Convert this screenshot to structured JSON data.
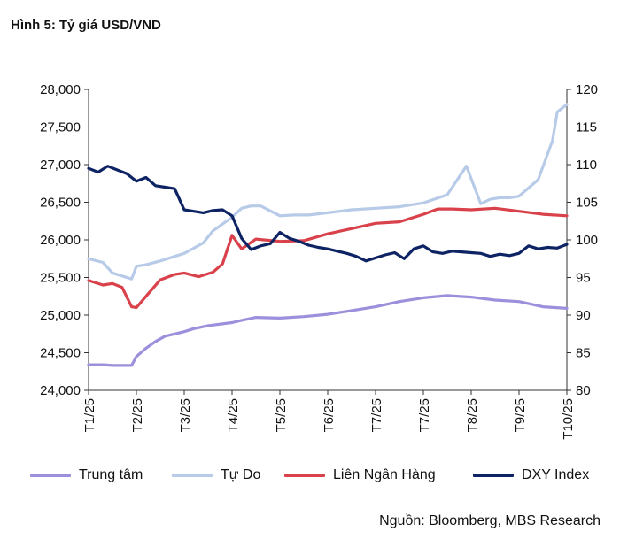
{
  "title": {
    "label": "Hình 5:",
    "text": "Tỷ giá USD/VND"
  },
  "source": "Nguồn: Bloomberg, MBS Research",
  "chart_data": {
    "type": "line",
    "categories": [
      "T1/25",
      "T2/25",
      "T3/25",
      "T4/25",
      "T5/25",
      "T6/25",
      "T7/25",
      "T7/25",
      "T8/25",
      "T9/25",
      "T10/25"
    ],
    "y_left": {
      "min": 24000,
      "max": 28000,
      "ticks": [
        "24,000",
        "24,500",
        "25,000",
        "25,500",
        "26,000",
        "26,500",
        "27,000",
        "27,500",
        "28,000"
      ]
    },
    "y_right": {
      "min": 80,
      "max": 120,
      "ticks": [
        "80",
        "85",
        "90",
        "95",
        "100",
        "105",
        "110",
        "115",
        "120"
      ]
    },
    "grid": false,
    "legend_position": "bottom",
    "series": [
      {
        "name": "Trung tâm",
        "axis": "left",
        "color": "#9d8fdc",
        "x": [
          0,
          0.3,
          0.5,
          0.9,
          1.0,
          1.2,
          1.4,
          1.6,
          1.8,
          2.0,
          2.2,
          2.5,
          3.0,
          3.2,
          3.5,
          4.0,
          4.5,
          5.0,
          5.5,
          6.0,
          6.5,
          7.0,
          7.5,
          8.0,
          8.5,
          9.0,
          9.5,
          10.0
        ],
        "values": [
          24340,
          24340,
          24330,
          24330,
          24450,
          24560,
          24650,
          24720,
          24750,
          24780,
          24820,
          24860,
          24900,
          24930,
          24970,
          24960,
          24980,
          25010,
          25060,
          25110,
          25180,
          25230,
          25260,
          25240,
          25200,
          25180,
          25110,
          25090
        ]
      },
      {
        "name": "Tự Do",
        "axis": "left",
        "color": "#b7cbe8",
        "x": [
          0,
          0.3,
          0.5,
          0.9,
          1.0,
          1.2,
          1.5,
          1.8,
          2.0,
          2.4,
          2.6,
          3.0,
          3.2,
          3.4,
          3.6,
          4.0,
          4.3,
          4.6,
          5.0,
          5.5,
          6.0,
          6.5,
          7.0,
          7.5,
          7.9,
          8.2,
          8.4,
          8.6,
          8.8,
          9.0,
          9.4,
          9.7,
          9.8,
          10.0
        ],
        "values": [
          25750,
          25700,
          25560,
          25480,
          25650,
          25670,
          25720,
          25780,
          25820,
          25960,
          26120,
          26300,
          26420,
          26450,
          26450,
          26320,
          26330,
          26330,
          26360,
          26400,
          26420,
          26440,
          26490,
          26600,
          26980,
          26480,
          26540,
          26560,
          26560,
          26580,
          26800,
          27320,
          27700,
          27800
        ]
      },
      {
        "name": "Liên Ngân Hàng",
        "axis": "left",
        "color": "#d9414b",
        "x": [
          0,
          0.3,
          0.5,
          0.7,
          0.9,
          1.0,
          1.2,
          1.5,
          1.8,
          2.0,
          2.3,
          2.6,
          2.8,
          3.0,
          3.2,
          3.5,
          4.0,
          4.5,
          5.0,
          5.5,
          6.0,
          6.5,
          7.0,
          7.3,
          7.6,
          8.0,
          8.5,
          9.0,
          9.5,
          10.0
        ],
        "values": [
          25460,
          25400,
          25420,
          25370,
          25110,
          25100,
          25250,
          25470,
          25540,
          25560,
          25510,
          25570,
          25680,
          26060,
          25880,
          26010,
          25980,
          25990,
          26080,
          26150,
          26220,
          26240,
          26340,
          26410,
          26410,
          26400,
          26420,
          26380,
          26340,
          26320
        ]
      },
      {
        "name": "DXY Index",
        "axis": "right",
        "color": "#0d2363",
        "x": [
          0,
          0.2,
          0.4,
          0.6,
          0.8,
          1.0,
          1.2,
          1.4,
          1.6,
          1.8,
          2.0,
          2.2,
          2.4,
          2.6,
          2.8,
          3.0,
          3.2,
          3.4,
          3.6,
          3.8,
          4.0,
          4.2,
          4.4,
          4.6,
          4.8,
          5.0,
          5.2,
          5.4,
          5.6,
          5.8,
          6.0,
          6.2,
          6.4,
          6.6,
          6.8,
          7.0,
          7.2,
          7.4,
          7.6,
          7.8,
          8.0,
          8.2,
          8.4,
          8.6,
          8.8,
          9.0,
          9.2,
          9.4,
          9.6,
          9.8,
          10.0
        ],
        "values": [
          109.5,
          109,
          109.8,
          109.3,
          108.8,
          107.8,
          108.3,
          107.2,
          107,
          106.8,
          104,
          103.8,
          103.6,
          103.9,
          104,
          103.2,
          100.2,
          98.7,
          99.2,
          99.5,
          101,
          100.2,
          99.8,
          99.3,
          99,
          98.8,
          98.5,
          98.2,
          97.8,
          97.2,
          97.6,
          98,
          98.3,
          97.5,
          98.8,
          99.2,
          98.4,
          98.2,
          98.5,
          98.4,
          98.3,
          98.2,
          97.8,
          98.1,
          97.9,
          98.2,
          99.2,
          98.8,
          99,
          98.9,
          99.4
        ]
      }
    ]
  }
}
